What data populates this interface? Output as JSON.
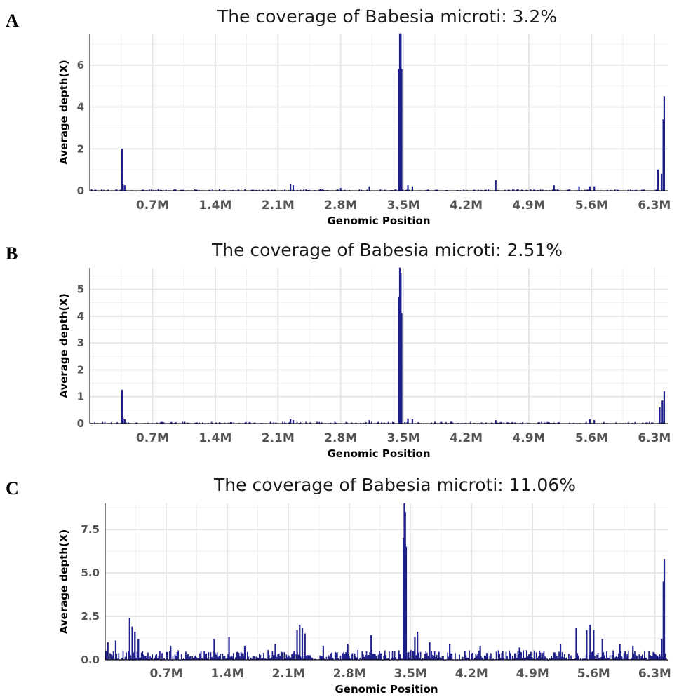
{
  "chart_data": [
    {
      "panel": "A",
      "type": "bar",
      "title": "The coverage of Babesia microti: 3.2%",
      "xlabel": "Genomic Position",
      "ylabel": "Average depth(X)",
      "xticks": [
        {
          "value": 0.7,
          "label": "0.7M"
        },
        {
          "value": 1.4,
          "label": "1.4M"
        },
        {
          "value": 2.1,
          "label": "2.1M"
        },
        {
          "value": 2.8,
          "label": "2.8M"
        },
        {
          "value": 3.5,
          "label": "3.5M"
        },
        {
          "value": 4.2,
          "label": "4.2M"
        },
        {
          "value": 4.9,
          "label": "4.9M"
        },
        {
          "value": 5.6,
          "label": "5.6M"
        },
        {
          "value": 6.3,
          "label": "6.3M"
        }
      ],
      "yticks": [
        0,
        2,
        4,
        6
      ],
      "ytick_labels": [
        "0",
        "2",
        "4",
        "6"
      ],
      "xlim": [
        0,
        6.45
      ],
      "ylim": [
        0,
        7.5
      ],
      "peaks": [
        {
          "x": 0.36,
          "y": 2.0
        },
        {
          "x": 0.37,
          "y": 0.3
        },
        {
          "x": 0.39,
          "y": 0.25
        },
        {
          "x": 2.24,
          "y": 0.3
        },
        {
          "x": 2.27,
          "y": 0.25
        },
        {
          "x": 2.8,
          "y": 0.12
        },
        {
          "x": 3.12,
          "y": 0.2
        },
        {
          "x": 3.45,
          "y": 5.8
        },
        {
          "x": 3.46,
          "y": 7.5
        },
        {
          "x": 3.47,
          "y": 7.5
        },
        {
          "x": 3.48,
          "y": 5.8
        },
        {
          "x": 3.55,
          "y": 0.25
        },
        {
          "x": 3.6,
          "y": 0.2
        },
        {
          "x": 4.53,
          "y": 0.5
        },
        {
          "x": 5.18,
          "y": 0.25
        },
        {
          "x": 5.46,
          "y": 0.2
        },
        {
          "x": 5.58,
          "y": 0.2
        },
        {
          "x": 5.63,
          "y": 0.2
        },
        {
          "x": 6.34,
          "y": 1.0
        },
        {
          "x": 6.38,
          "y": 0.8
        },
        {
          "x": 6.41,
          "y": 4.5
        },
        {
          "x": 6.4,
          "y": 3.4
        }
      ]
    },
    {
      "panel": "B",
      "type": "bar",
      "title": "The coverage of Babesia microti: 2.51%",
      "xlabel": "Genomic Position",
      "ylabel": "Average depth(X)",
      "xticks": [
        {
          "value": 0.7,
          "label": "0.7M"
        },
        {
          "value": 1.4,
          "label": "1.4M"
        },
        {
          "value": 2.1,
          "label": "2.1M"
        },
        {
          "value": 2.8,
          "label": "2.8M"
        },
        {
          "value": 3.5,
          "label": "3.5M"
        },
        {
          "value": 4.2,
          "label": "4.2M"
        },
        {
          "value": 4.9,
          "label": "4.9M"
        },
        {
          "value": 5.6,
          "label": "5.6M"
        },
        {
          "value": 6.3,
          "label": "6.3M"
        }
      ],
      "yticks": [
        0,
        1,
        2,
        3,
        4,
        5
      ],
      "ytick_labels": [
        "0",
        "1",
        "2",
        "3",
        "4",
        "5"
      ],
      "xlim": [
        0,
        6.45
      ],
      "ylim": [
        0,
        5.8
      ],
      "peaks": [
        {
          "x": 0.36,
          "y": 1.25
        },
        {
          "x": 0.37,
          "y": 0.2
        },
        {
          "x": 0.39,
          "y": 0.15
        },
        {
          "x": 2.24,
          "y": 0.15
        },
        {
          "x": 2.27,
          "y": 0.12
        },
        {
          "x": 3.12,
          "y": 0.12
        },
        {
          "x": 3.45,
          "y": 4.7
        },
        {
          "x": 3.46,
          "y": 5.8
        },
        {
          "x": 3.47,
          "y": 5.6
        },
        {
          "x": 3.48,
          "y": 4.1
        },
        {
          "x": 3.55,
          "y": 0.18
        },
        {
          "x": 3.6,
          "y": 0.15
        },
        {
          "x": 4.53,
          "y": 0.12
        },
        {
          "x": 5.58,
          "y": 0.15
        },
        {
          "x": 5.63,
          "y": 0.12
        },
        {
          "x": 6.36,
          "y": 0.6
        },
        {
          "x": 6.39,
          "y": 0.85
        },
        {
          "x": 6.41,
          "y": 1.2
        }
      ]
    },
    {
      "panel": "C",
      "type": "bar",
      "title": "The coverage of Babesia microti: 11.06%",
      "xlabel": "Genomic Position",
      "ylabel": "Average depth(X)",
      "xticks": [
        {
          "value": 0.7,
          "label": "0.7M"
        },
        {
          "value": 1.4,
          "label": "1.4M"
        },
        {
          "value": 2.1,
          "label": "2.1M"
        },
        {
          "value": 2.8,
          "label": "2.8M"
        },
        {
          "value": 3.5,
          "label": "3.5M"
        },
        {
          "value": 4.2,
          "label": "4.2M"
        },
        {
          "value": 4.9,
          "label": "4.9M"
        },
        {
          "value": 5.6,
          "label": "5.6M"
        },
        {
          "value": 6.3,
          "label": "6.3M"
        }
      ],
      "yticks": [
        0,
        2.5,
        5,
        7.5
      ],
      "ytick_labels": [
        "0.0",
        "2.5",
        "5.0",
        "7.5"
      ],
      "xlim": [
        0,
        6.45
      ],
      "ylim": [
        0,
        9.0
      ],
      "peaks": [
        {
          "x": 0.03,
          "y": 1.0
        },
        {
          "x": 0.12,
          "y": 1.1
        },
        {
          "x": 0.28,
          "y": 2.4
        },
        {
          "x": 0.31,
          "y": 1.9
        },
        {
          "x": 0.34,
          "y": 1.6
        },
        {
          "x": 0.38,
          "y": 1.2
        },
        {
          "x": 0.75,
          "y": 0.8
        },
        {
          "x": 1.25,
          "y": 1.2
        },
        {
          "x": 1.42,
          "y": 1.3
        },
        {
          "x": 1.6,
          "y": 0.8
        },
        {
          "x": 1.95,
          "y": 0.9
        },
        {
          "x": 2.2,
          "y": 1.7
        },
        {
          "x": 2.23,
          "y": 2.0
        },
        {
          "x": 2.26,
          "y": 1.8
        },
        {
          "x": 2.29,
          "y": 1.5
        },
        {
          "x": 2.5,
          "y": 0.8
        },
        {
          "x": 2.78,
          "y": 0.9
        },
        {
          "x": 3.05,
          "y": 1.4
        },
        {
          "x": 3.42,
          "y": 7.0
        },
        {
          "x": 3.43,
          "y": 9.0
        },
        {
          "x": 3.44,
          "y": 8.5
        },
        {
          "x": 3.45,
          "y": 6.5
        },
        {
          "x": 3.55,
          "y": 1.3
        },
        {
          "x": 3.58,
          "y": 1.6
        },
        {
          "x": 3.72,
          "y": 1.0
        },
        {
          "x": 3.95,
          "y": 0.9
        },
        {
          "x": 4.3,
          "y": 0.8
        },
        {
          "x": 4.75,
          "y": 0.7
        },
        {
          "x": 5.22,
          "y": 0.9
        },
        {
          "x": 5.4,
          "y": 1.8
        },
        {
          "x": 5.52,
          "y": 1.7
        },
        {
          "x": 5.56,
          "y": 2.0
        },
        {
          "x": 5.6,
          "y": 1.7
        },
        {
          "x": 5.7,
          "y": 1.2
        },
        {
          "x": 5.9,
          "y": 0.9
        },
        {
          "x": 6.05,
          "y": 0.8
        },
        {
          "x": 6.4,
          "y": 4.5
        },
        {
          "x": 6.41,
          "y": 5.8
        },
        {
          "x": 6.38,
          "y": 1.2
        }
      ]
    }
  ]
}
